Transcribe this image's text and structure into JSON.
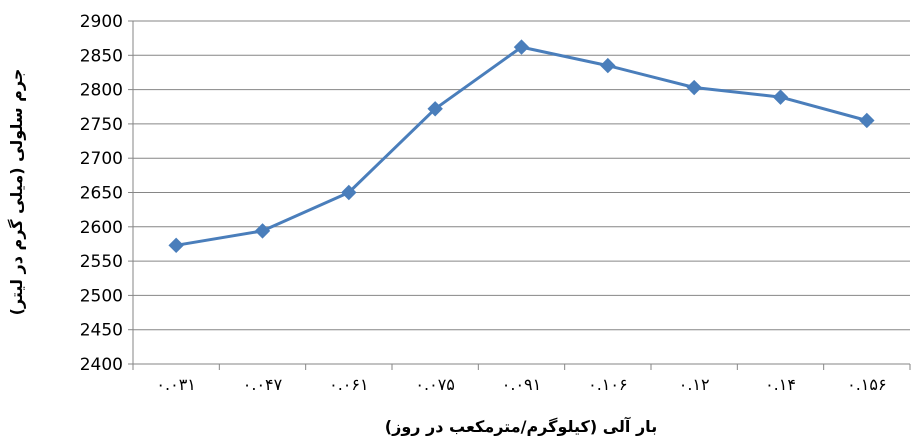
{
  "chart_data": {
    "type": "line",
    "title": "",
    "xlabel": "بار آلی (کیلوگرم/مترمکعب در روز)",
    "ylabel": "جرم سلولی (میلی گرم در لیتر)",
    "categories": [
      "۰.۰۳۱",
      "۰.۰۴۷",
      "۰.۰۶۱",
      "۰.۰۷۵",
      "۰.۰۹۱",
      "۰.۱۰۶",
      "۰.۱۲",
      "۰.۱۴",
      "۰.۱۵۶"
    ],
    "series": [
      {
        "values": [
          2573,
          2594,
          2650,
          2772,
          2862,
          2835,
          2803,
          2789,
          2755
        ]
      }
    ],
    "ylim": [
      2400,
      2900
    ],
    "yticks": [
      2400,
      2450,
      2500,
      2550,
      2600,
      2650,
      2700,
      2750,
      2800,
      2850,
      2900
    ],
    "grid": true,
    "legend": "none",
    "colors": {
      "series": "#4a7ebb",
      "grid": "#868686",
      "axis": "#868686"
    }
  }
}
